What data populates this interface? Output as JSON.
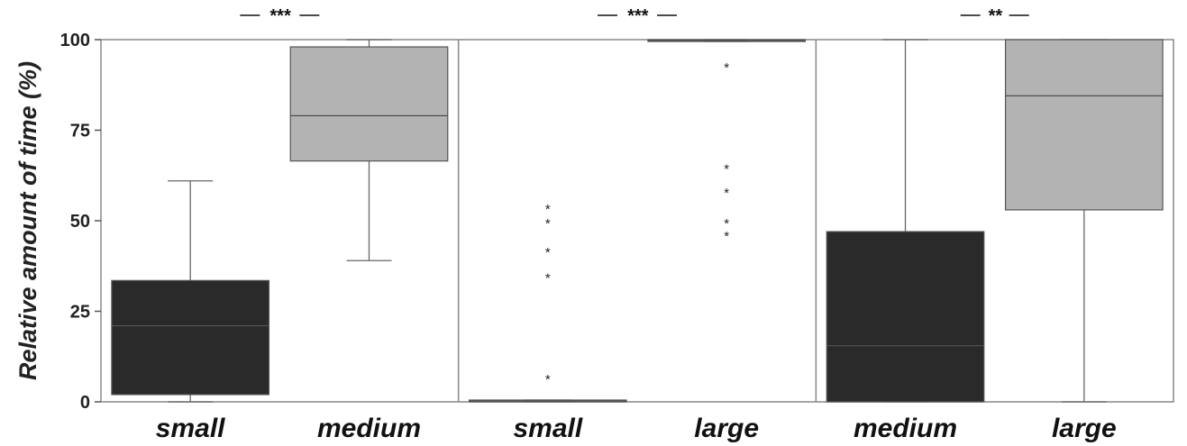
{
  "chart_data": {
    "type": "box",
    "ylabel": "Relative amount of time (%)",
    "ylim": [
      0,
      100
    ],
    "yticks": [
      "0",
      "25",
      "50",
      "75",
      "100"
    ],
    "grid": false,
    "legend": "none",
    "colors": {
      "dark_box": "#2a2a2a",
      "light_box": "#b3b3b3",
      "line": "#666666"
    },
    "panels": [
      {
        "significance": "***",
        "boxes": [
          {
            "category": "small",
            "fill": "dark",
            "min": 0,
            "q1": 2,
            "median": 21,
            "q3": 33.5,
            "max": 61,
            "outliers": []
          },
          {
            "category": "medium",
            "fill": "light",
            "min": 39,
            "q1": 66.5,
            "median": 79,
            "q3": 98,
            "max": 100,
            "outliers": []
          }
        ]
      },
      {
        "significance": "***",
        "boxes": [
          {
            "category": "small",
            "fill": "dark",
            "min": 0,
            "q1": 0,
            "median": 0.3,
            "q3": 0.5,
            "max": 0.5,
            "outliers": [
              54,
              50,
              42,
              35,
              7
            ]
          },
          {
            "category": "large",
            "fill": "light",
            "min": 99.5,
            "q1": 99.5,
            "median": 99.7,
            "q3": 100,
            "max": 100,
            "outliers": [
              93,
              65,
              58.5,
              50,
              46.5
            ]
          }
        ]
      },
      {
        "significance": "**",
        "boxes": [
          {
            "category": "medium",
            "fill": "dark",
            "min": 0,
            "q1": 0,
            "median": 15.5,
            "q3": 47,
            "max": 100,
            "outliers": []
          },
          {
            "category": "large",
            "fill": "light",
            "min": 0,
            "q1": 53,
            "median": 84.5,
            "q3": 100,
            "max": 100,
            "outliers": []
          }
        ]
      }
    ]
  }
}
